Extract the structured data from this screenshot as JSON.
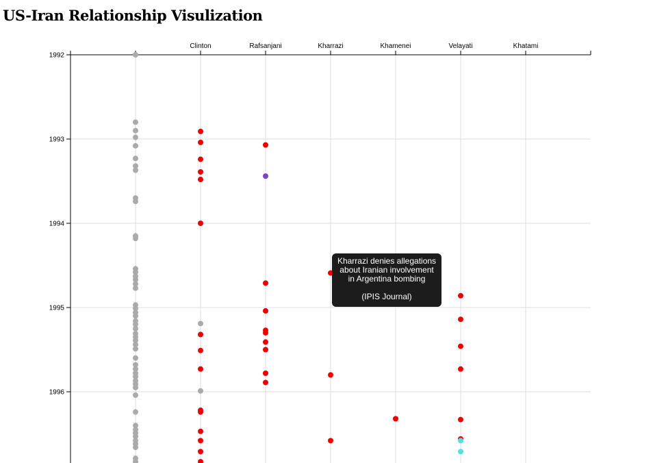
{
  "header": {
    "title": "US-Iran Relationship Visulization"
  },
  "tooltip": {
    "text": "Kharrazi denies allegations about Iranian involvement in Argentina bombing",
    "source": "(IPIS Journal)"
  },
  "colors": {
    "gray": "#aaaaaa",
    "red": "#ee0000",
    "purple": "#7744cc",
    "cyan": "#55e0e0",
    "grid": "#dddddd",
    "axis": "#000000"
  },
  "chart_data": {
    "type": "scatter",
    "x_categories": [
      "",
      "Clinton",
      "Rafsanjani",
      "Kharrazi",
      "Khamenei",
      "Velayati",
      "Khatami"
    ],
    "y_ticks": [
      "1992",
      "1993",
      "1994",
      "1995",
      "1996"
    ],
    "ylim": [
      1992,
      1996.85
    ],
    "grid": true,
    "series": [
      {
        "color": "gray",
        "points": [
          [
            0,
            1992.0
          ],
          [
            0,
            1992.8
          ],
          [
            0,
            1992.9
          ],
          [
            0,
            1992.98
          ],
          [
            0,
            1993.08
          ],
          [
            0,
            1993.23
          ],
          [
            0,
            1993.32
          ],
          [
            0,
            1993.37
          ],
          [
            0,
            1993.7
          ],
          [
            0,
            1993.74
          ],
          [
            0,
            1994.15
          ],
          [
            0,
            1994.18
          ],
          [
            0,
            1994.54
          ],
          [
            0,
            1994.58
          ],
          [
            0,
            1994.63
          ],
          [
            0,
            1994.67
          ],
          [
            0,
            1994.72
          ],
          [
            0,
            1994.77
          ],
          [
            0,
            1994.97
          ],
          [
            0,
            1995.01
          ],
          [
            0,
            1995.06
          ],
          [
            0,
            1995.1
          ],
          [
            0,
            1995.16
          ],
          [
            0,
            1995.2
          ],
          [
            0,
            1995.25
          ],
          [
            0,
            1995.31
          ],
          [
            0,
            1995.35
          ],
          [
            0,
            1995.39
          ],
          [
            0,
            1995.44
          ],
          [
            0,
            1995.49
          ],
          [
            0,
            1995.6
          ],
          [
            0,
            1995.68
          ],
          [
            0,
            1995.73
          ],
          [
            0,
            1995.78
          ],
          [
            0,
            1995.82
          ],
          [
            0,
            1995.87
          ],
          [
            0,
            1995.91
          ],
          [
            0,
            1995.95
          ],
          [
            0,
            1996.04
          ],
          [
            0,
            1996.24
          ],
          [
            0,
            1996.4
          ],
          [
            0,
            1996.45
          ],
          [
            0,
            1996.49
          ],
          [
            0,
            1996.53
          ],
          [
            0,
            1996.58
          ],
          [
            0,
            1996.62
          ],
          [
            0,
            1996.66
          ],
          [
            0,
            1996.79
          ],
          [
            0,
            1996.83
          ],
          [
            1,
            1995.19
          ],
          [
            1,
            1995.99
          ]
        ]
      },
      {
        "color": "red",
        "points": [
          [
            1,
            1992.91
          ],
          [
            1,
            1993.04
          ],
          [
            1,
            1993.24
          ],
          [
            1,
            1993.39
          ],
          [
            1,
            1993.48
          ],
          [
            1,
            1994.0
          ],
          [
            1,
            1995.32
          ],
          [
            1,
            1995.51
          ],
          [
            1,
            1995.73
          ],
          [
            1,
            1996.22
          ],
          [
            1,
            1996.24
          ],
          [
            1,
            1996.47
          ],
          [
            1,
            1996.58
          ],
          [
            1,
            1996.71
          ],
          [
            1,
            1996.83
          ],
          [
            2,
            1993.07
          ],
          [
            2,
            1994.71
          ],
          [
            2,
            1995.04
          ],
          [
            2,
            1995.27
          ],
          [
            2,
            1995.3
          ],
          [
            2,
            1995.41
          ],
          [
            2,
            1995.5
          ],
          [
            2,
            1995.78
          ],
          [
            2,
            1995.89
          ],
          [
            3,
            1994.59
          ],
          [
            3,
            1995.8
          ],
          [
            3,
            1996.58
          ],
          [
            4,
            1996.32
          ],
          [
            5,
            1994.86
          ],
          [
            5,
            1995.14
          ],
          [
            5,
            1995.46
          ],
          [
            5,
            1995.73
          ],
          [
            5,
            1996.33
          ],
          [
            5,
            1996.56
          ]
        ]
      },
      {
        "color": "purple",
        "points": [
          [
            2,
            1993.44
          ]
        ]
      },
      {
        "color": "cyan",
        "points": [
          [
            5,
            1996.58
          ],
          [
            5,
            1996.71
          ]
        ]
      }
    ]
  }
}
